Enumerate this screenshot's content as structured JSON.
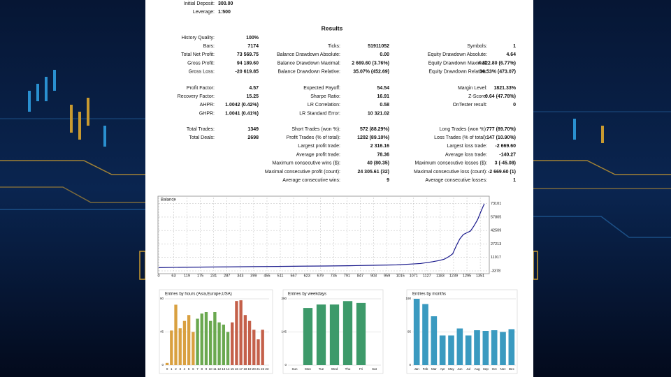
{
  "report": {
    "header": [
      [
        "Initial Deposit:",
        "300.00"
      ],
      [
        "Leverage:",
        "1:500"
      ]
    ],
    "title": "Results",
    "sections": [
      [
        [
          [
            "History Quality:",
            "100%"
          ],
          null,
          null
        ],
        [
          [
            "Bars:",
            "7174"
          ],
          [
            "Ticks:",
            "51911052"
          ],
          [
            "Symbols:",
            "1"
          ]
        ],
        [
          [
            "Total Net Profit:",
            "73 569.75"
          ],
          [
            "Balance Drawdown Absolute:",
            "0.00"
          ],
          [
            "Equity Drawdown Absolute:",
            "4.64"
          ]
        ],
        [
          [
            "Gross Profit:",
            "94 189.60"
          ],
          [
            "Balance Drawdown Maximal:",
            "2 669.60 (3.76%)"
          ],
          [
            "Equity Drawdown Maximal:",
            "4 822.80 (6.77%)"
          ]
        ],
        [
          [
            "Gross Loss:",
            "-20 619.85"
          ],
          [
            "Balance Drawdown Relative:",
            "35.07% (452.69)"
          ],
          [
            "Equity Drawdown Relative:",
            "36.53% (473.07)"
          ]
        ]
      ],
      [
        [
          [
            "Profit Factor:",
            "4.57"
          ],
          [
            "Expected Payoff:",
            "54.54"
          ],
          [
            "Margin Level:",
            "1821.33%"
          ]
        ],
        [
          [
            "Recovery Factor:",
            "15.25"
          ],
          [
            "Sharpe Ratio:",
            "16.91"
          ],
          [
            "Z-Score:",
            "0.64 (47.78%)"
          ]
        ],
        [
          [
            "AHPR:",
            "1.0042 (0.42%)"
          ],
          [
            "LR Correlation:",
            "0.58"
          ],
          [
            "OnTester result:",
            "0"
          ]
        ],
        [
          [
            "GHPR:",
            "1.0041 (0.41%)"
          ],
          [
            "LR Standard Error:",
            "10 321.02"
          ],
          null
        ]
      ],
      [
        [
          [
            "Total Trades:",
            "1349"
          ],
          [
            "Short Trades (won %):",
            "572 (88.29%)"
          ],
          [
            "Long Trades (won %):",
            "777 (89.70%)"
          ]
        ],
        [
          [
            "Total Deals:",
            "2698"
          ],
          [
            "Profit Trades (% of total):",
            "1202 (89.10%)"
          ],
          [
            "Loss Trades (% of total):",
            "147 (10.90%)"
          ]
        ],
        [
          null,
          [
            "Largest profit trade:",
            "2 316.16"
          ],
          [
            "Largest loss trade:",
            "-2 669.60"
          ]
        ],
        [
          null,
          [
            "Average profit trade:",
            "78.36"
          ],
          [
            "Average loss trade:",
            "-140.27"
          ]
        ],
        [
          null,
          [
            "Maximum consecutive wins ($):",
            "40 (80.35)"
          ],
          [
            "Maximum consecutive losses ($):",
            "3 (-45.08)"
          ]
        ],
        [
          null,
          [
            "Maximal consecutive profit (count):",
            "24 305.61 (32)"
          ],
          [
            "Maximal consecutive loss (count):",
            "-2 669.60 (1)"
          ]
        ],
        [
          null,
          [
            "Average consecutive wins:",
            "9"
          ],
          [
            "Average consecutive losses:",
            "1"
          ]
        ]
      ]
    ]
  },
  "chart_data": [
    {
      "type": "line",
      "title": "Balance",
      "color": "#1a1a8c",
      "grid": true,
      "x": [
        0,
        100,
        200,
        300,
        400,
        500,
        600,
        700,
        800,
        900,
        1000,
        1050,
        1100,
        1150,
        1180,
        1200,
        1220,
        1235,
        1250,
        1265,
        1280,
        1295,
        1310,
        1325,
        1340,
        1355,
        1368
      ],
      "values": [
        300,
        700,
        1000,
        1200,
        1500,
        1700,
        2000,
        2200,
        2500,
        3000,
        3500,
        4200,
        5000,
        7000,
        8500,
        10000,
        13000,
        16000,
        25000,
        33000,
        38000,
        40000,
        42000,
        48000,
        55000,
        65000,
        73000
      ],
      "xlim": [
        0,
        1380
      ],
      "ylim": [
        -3378,
        80000
      ],
      "xticks": [
        0,
        63,
        119,
        175,
        231,
        287,
        343,
        399,
        455,
        511,
        567,
        623,
        679,
        735,
        791,
        847,
        903,
        959,
        1015,
        1071,
        1127,
        1183,
        1239,
        1295,
        1351
      ],
      "yticks": [
        -3378,
        11917,
        27213,
        42509,
        57805,
        73101
      ]
    },
    {
      "type": "bar",
      "title": "Entries by hours (Asia,Europe,USA)",
      "categories": [
        "0",
        "1",
        "2",
        "3",
        "4",
        "5",
        "6",
        "7",
        "8",
        "9",
        "10",
        "11",
        "12",
        "13",
        "14",
        "15",
        "16",
        "17",
        "18",
        "19",
        "20",
        "21",
        "22",
        "23"
      ],
      "values": [
        3,
        47,
        82,
        50,
        60,
        68,
        45,
        63,
        70,
        72,
        60,
        72,
        58,
        55,
        45,
        58,
        87,
        88,
        68,
        60,
        48,
        35,
        48,
        0
      ],
      "colors": [
        "#d9a040",
        "#d9a040",
        "#d9a040",
        "#d9a040",
        "#d9a040",
        "#d9a040",
        "#d9a040",
        "#6aa84f",
        "#6aa84f",
        "#6aa84f",
        "#6aa84f",
        "#6aa84f",
        "#6aa84f",
        "#6aa84f",
        "#6aa84f",
        "#c4604a",
        "#c4604a",
        "#c4604a",
        "#c4604a",
        "#c4604a",
        "#c4604a",
        "#c4604a",
        "#c4604a",
        "#c4604a"
      ],
      "ylim": [
        0,
        90
      ],
      "yticks": [
        0,
        45,
        90
      ]
    },
    {
      "type": "bar",
      "title": "Entries by weekdays",
      "categories": [
        "Sun",
        "Mon",
        "Tue",
        "Wed",
        "Thu",
        "Fri",
        "Sat"
      ],
      "values": [
        0,
        250,
        265,
        265,
        280,
        272,
        0
      ],
      "colors": [
        "#3d9a6a",
        "#3d9a6a",
        "#3d9a6a",
        "#3d9a6a",
        "#3d9a6a",
        "#3d9a6a",
        "#3d9a6a"
      ],
      "ylim": [
        0,
        290
      ],
      "yticks": [
        0,
        145,
        290
      ]
    },
    {
      "type": "bar",
      "title": "Entries by months",
      "categories": [
        "Jan",
        "Feb",
        "Mar",
        "Apr",
        "May",
        "Jun",
        "Jul",
        "Aug",
        "Sep",
        "Oct",
        "Nov",
        "Dec"
      ],
      "values": [
        190,
        175,
        140,
        85,
        85,
        105,
        85,
        100,
        98,
        100,
        95,
        103
      ],
      "colors": [
        "#3a9ac0",
        "#3a9ac0",
        "#3a9ac0",
        "#3a9ac0",
        "#3a9ac0",
        "#3a9ac0",
        "#3a9ac0",
        "#3a9ac0",
        "#3a9ac0",
        "#3a9ac0",
        "#3a9ac0",
        "#3a9ac0"
      ],
      "ylim": [
        0,
        190
      ],
      "yticks": [
        0,
        95,
        190
      ]
    }
  ]
}
